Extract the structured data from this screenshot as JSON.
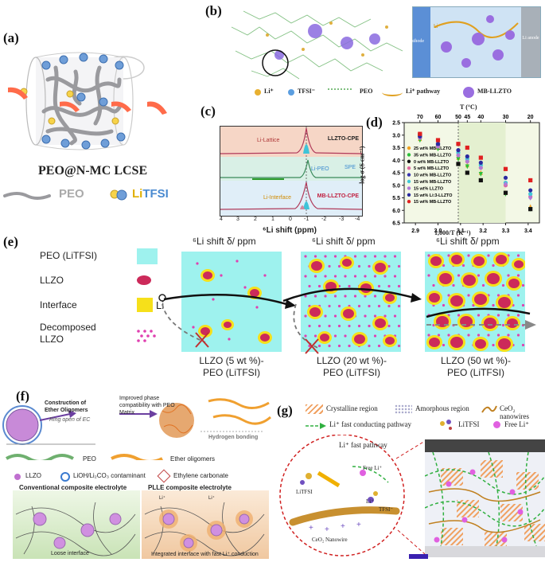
{
  "panel_a": {
    "label": "(a)",
    "title": "PEO@N-MC LCSE",
    "legend_peo": "PEO",
    "legend_salt_prefix": "Li",
    "legend_salt_suffix": "TFSI"
  },
  "panel_b": {
    "label": "(b)",
    "cathode": "Cathode",
    "anode": "Li anode",
    "li_marker": "Li⁺",
    "legend": [
      "Li⁺",
      "TFSI⁻",
      "PEO",
      "Li⁺ pathway",
      "MB-LLZTO"
    ]
  },
  "panel_c": {
    "label": "(c)",
    "xlabel": "⁶Li shift (ppm)",
    "xticks": [
      "4",
      "3",
      "2",
      "1",
      "0",
      "-1",
      "-2",
      "-3",
      "-4"
    ],
    "spectra": [
      "LLZTO-CPE",
      "SPE",
      "MB-LLZTO-CPE"
    ],
    "annotations": [
      "Li-Lattice",
      "Li-PEO",
      "Li-Interface"
    ]
  },
  "panel_d": {
    "label": "(d)",
    "top_axis_title": "T (°C)",
    "top_ticks": [
      "70",
      "60",
      "50",
      "45",
      "40",
      "30",
      "20"
    ],
    "xlabel": "1,000/T (K⁻¹)",
    "ylabel": "-log σ (S cm⁻¹)"
  },
  "chart_data": {
    "type": "scatter",
    "xlabel": "1,000/T (K⁻¹)",
    "ylabel": "-log σ (S cm⁻¹)",
    "xlim": [
      2.85,
      3.45
    ],
    "ylim": [
      6.5,
      2.5
    ],
    "x": [
      2.92,
      3.0,
      3.09,
      3.13,
      3.19,
      3.3,
      3.41
    ],
    "xticks": [
      "2.9",
      "3.0",
      "3.1",
      "3.2",
      "3.3",
      "3.4"
    ],
    "yticks": [
      "2.5",
      "3.0",
      "3.5",
      "4.0",
      "4.5",
      "5.0",
      "5.5",
      "6.0",
      "6.5"
    ],
    "series": [
      {
        "name": "25 wt% MB-LLZTO",
        "color": "#f0a020",
        "marker": "triangle",
        "values": [
          3.15,
          3.5,
          3.9,
          4.2,
          4.5,
          5.3,
          5.85
        ]
      },
      {
        "name": "35 wt% MB-LLZTO",
        "color": "#2bbf3a",
        "marker": "triangle-down",
        "values": [
          3.2,
          3.55,
          3.95,
          4.25,
          4.55,
          5.35,
          5.95
        ]
      },
      {
        "name": "0 wt% MB-LLZTO",
        "color": "#111111",
        "marker": "square",
        "values": [
          3.0,
          3.4,
          4.15,
          4.5,
          4.8,
          5.3,
          5.95
        ]
      },
      {
        "name": "5 wt% MB-LLZTO",
        "color": "#e06aa0",
        "marker": "circle",
        "values": [
          3.1,
          3.45,
          3.8,
          4.05,
          4.3,
          5.0,
          5.45
        ]
      },
      {
        "name": "10 wt% MB-LLZTO",
        "color": "#3a36b0",
        "marker": "triangle-down",
        "values": [
          3.05,
          3.4,
          3.75,
          4.0,
          4.25,
          4.95,
          5.4
        ]
      },
      {
        "name": "15 wt% MB-LLZTO",
        "color": "#40c8d8",
        "marker": "circle",
        "values": [
          3.05,
          3.35,
          3.7,
          3.95,
          4.2,
          4.9,
          5.35
        ]
      },
      {
        "name": "15 wt% LLZTO",
        "color": "#b07ad8",
        "marker": "diamond",
        "values": [
          3.1,
          3.45,
          3.8,
          4.05,
          4.3,
          4.95,
          5.5
        ]
      },
      {
        "name": "15 wt% Li:3-LLZTO",
        "color": "#2a2aa0",
        "marker": "circle",
        "values": [
          3.05,
          3.35,
          3.6,
          3.85,
          4.1,
          4.7,
          5.2
        ]
      },
      {
        "name": "15 wt% MB-LLZTO",
        "color": "#e02020",
        "marker": "square",
        "values": [
          2.95,
          3.2,
          3.35,
          3.5,
          3.9,
          4.35,
          4.8
        ]
      }
    ]
  },
  "panel_e": {
    "label": "(e)",
    "legend": [
      "PEO (LiTFSI)",
      "LLZO",
      "Interface",
      "Decomposed LLZO"
    ],
    "li_label": "Li",
    "header": "⁶Li shift δ/ ppm",
    "captions": [
      [
        "LLZO (5 wt %)-",
        "PEO (LiTFSI)"
      ],
      [
        "LLZO (20 wt %)-",
        "PEO (LiTFSI)"
      ],
      [
        "LLZO (50 wt %)-",
        "PEO (LiTFSI)"
      ]
    ]
  },
  "panel_f": {
    "label": "(f)",
    "step1": "Construction of Ether Oligomers",
    "step1b": "Ring open of EC",
    "step2": "Improved phase compatibility with PEO Matrix",
    "hbond": "Hydrogen bonding",
    "peo": "PEO",
    "ether": "Ether oligomers",
    "llzo": "LLZO",
    "contaminant": "LiOH/Li₂CO₃ contaminant",
    "ec": "Ethylene carbonate",
    "conv_title": "Conventional composite electrolyte",
    "plle_title": "PLLE composite electrolyte",
    "loose": "Loose interface",
    "integrated": "Integrated interface with fast Li⁺ conduction",
    "li_plus": "Li⁺"
  },
  "panel_g": {
    "label": "(g)",
    "legend": [
      "Crystalline region",
      "Amorphous region",
      "CeO₂ nanowires",
      "Li⁺ fast conducting pathway",
      "LiTFSI",
      "Free Li⁺"
    ],
    "fast_pathway": "Li⁺ fast pathway",
    "free_li": "Free Li⁺",
    "litfsi": "LiTFSI",
    "tfsi": "TFSI⁻",
    "li_plus": "Li⁺",
    "nanowire": "CeO₂ Nanowire"
  }
}
